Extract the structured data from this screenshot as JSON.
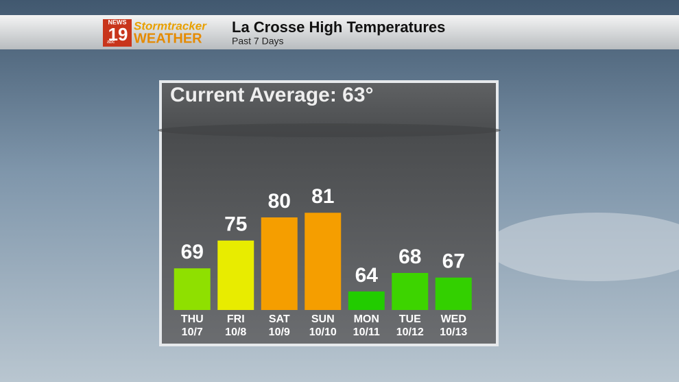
{
  "logo": {
    "network": "NEWS",
    "channel": "19",
    "affiliate": "abc",
    "brand": "Stormtracker",
    "brand_sub": "WEATHER"
  },
  "chart_data": {
    "type": "bar",
    "title": "La Crosse High Temperatures",
    "subtitle": "Past 7 Days",
    "annotation": "Current Average: 63°",
    "categories": [
      "THU",
      "FRI",
      "SAT",
      "SUN",
      "MON",
      "TUE",
      "WED"
    ],
    "dates": [
      "10/7",
      "10/8",
      "10/9",
      "10/10",
      "10/11",
      "10/12",
      "10/13"
    ],
    "values": [
      69,
      75,
      80,
      81,
      64,
      68,
      67
    ],
    "colors": [
      "#8fe000",
      "#e8ec00",
      "#f59e00",
      "#f59e00",
      "#22cc00",
      "#3dd400",
      "#33d000"
    ],
    "ylim": [
      60,
      100
    ]
  }
}
